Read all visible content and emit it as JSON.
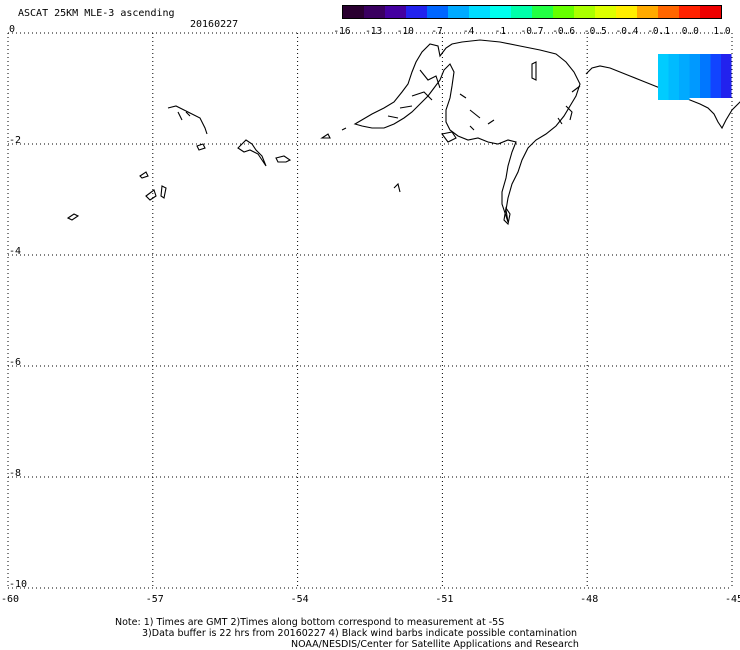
{
  "header": {
    "title": "ASCAT 25KM MLE-3 ascending",
    "date": "20160227"
  },
  "colorbar": {
    "colors": [
      "#2a0030",
      "#3a0060",
      "#4400a0",
      "#2222ee",
      "#0066ff",
      "#00aaff",
      "#00ddff",
      "#00ffee",
      "#00ffaa",
      "#22ff44",
      "#66ff00",
      "#aaff00",
      "#ddff00",
      "#ffee00",
      "#ffaa00",
      "#ff6600",
      "#ff2200",
      "#ee0000"
    ],
    "ticks": [
      "-16",
      "-13",
      "-10",
      "-7",
      "-4",
      "-1",
      "-0.7",
      "-0.6",
      "-0.5",
      "-0.4",
      "-0.1",
      "0.0",
      "1.0"
    ]
  },
  "map": {
    "lon_range": [
      -60,
      -45
    ],
    "lat_range": [
      -10,
      0
    ],
    "x_ticks": [
      "-60",
      "-57",
      "-54",
      "-51",
      "-48",
      "-45"
    ],
    "y_ticks": [
      "0",
      "-2",
      "-4",
      "-6",
      "-8",
      "-10"
    ]
  },
  "notes": {
    "line1": "Note: 1) Times are GMT 2)Times along bottom correspond to measurement at -5S",
    "line2": "3)Data buffer is 22 hrs from 20160227 4) Black wind barbs indicate possible contamination",
    "line3": "NOAA/NESDIS/Center for Satellite Applications and Research"
  }
}
